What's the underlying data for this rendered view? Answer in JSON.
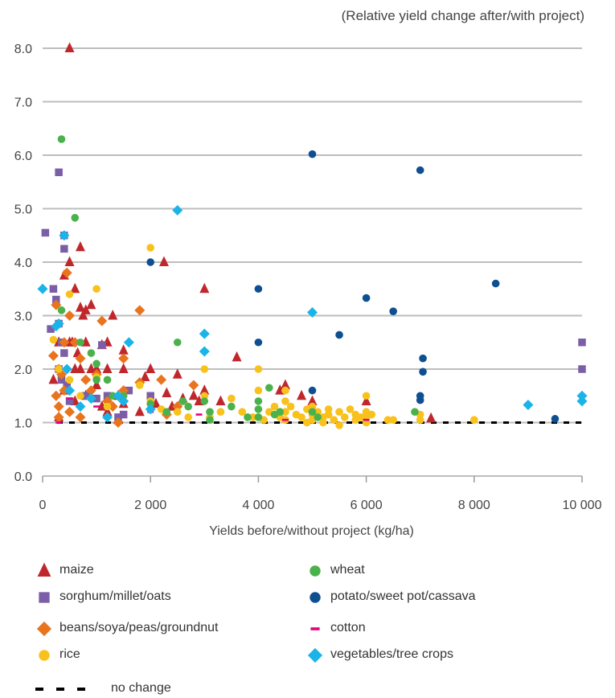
{
  "chart_data": {
    "type": "scatter",
    "title": "",
    "ylabel": "(Relative yield change after/with project)",
    "xlabel": "Yields before/without project (kg/ha)",
    "xlim": [
      0,
      10000
    ],
    "ylim": [
      0,
      8.5
    ],
    "x_ticks": [
      0,
      2000,
      4000,
      6000,
      8000,
      10000
    ],
    "x_tick_labels": [
      "0",
      "2 000",
      "4 000",
      "6 000",
      "8 000",
      "10 000"
    ],
    "y_ticks": [
      0,
      1,
      2,
      3,
      4,
      5,
      6,
      7,
      8
    ],
    "y_tick_labels": [
      "0.0",
      "1.0",
      "2.0",
      "3.0",
      "4.0",
      "5.0",
      "6.0",
      "7.0",
      "8.0"
    ],
    "grid": "horizontal",
    "reference_line": {
      "name": "no change",
      "y": 1.0,
      "style": "dashed",
      "color": "#000000"
    },
    "legend_position": "bottom",
    "series": [
      {
        "name": "maize",
        "marker": "triangle",
        "color": "#c0272d",
        "points": [
          [
            500,
            8.0
          ],
          [
            700,
            4.28
          ],
          [
            500,
            4.0
          ],
          [
            2250,
            4.0
          ],
          [
            3000,
            3.5
          ],
          [
            400,
            3.75
          ],
          [
            600,
            3.5
          ],
          [
            800,
            3.1
          ],
          [
            700,
            3.15
          ],
          [
            900,
            3.2
          ],
          [
            750,
            3.0
          ],
          [
            1300,
            3.0
          ],
          [
            1100,
            2.45
          ],
          [
            1200,
            2.5
          ],
          [
            1500,
            2.35
          ],
          [
            300,
            2.5
          ],
          [
            500,
            2.5
          ],
          [
            550,
            2.5
          ],
          [
            600,
            2.0
          ],
          [
            650,
            2.3
          ],
          [
            700,
            2.0
          ],
          [
            800,
            2.5
          ],
          [
            900,
            2.0
          ],
          [
            1000,
            2.0
          ],
          [
            1200,
            2.0
          ],
          [
            1500,
            2.0
          ],
          [
            2000,
            2.0
          ],
          [
            1900,
            1.85
          ],
          [
            2500,
            1.9
          ],
          [
            3600,
            2.22
          ],
          [
            200,
            1.8
          ],
          [
            400,
            1.6
          ],
          [
            600,
            1.4
          ],
          [
            800,
            1.5
          ],
          [
            1000,
            1.7
          ],
          [
            1100,
            1.3
          ],
          [
            1200,
            1.2
          ],
          [
            1400,
            1.5
          ],
          [
            1500,
            1.35
          ],
          [
            1800,
            1.2
          ],
          [
            2100,
            1.35
          ],
          [
            2300,
            1.55
          ],
          [
            2400,
            1.3
          ],
          [
            2600,
            1.45
          ],
          [
            2800,
            1.5
          ],
          [
            2900,
            1.4
          ],
          [
            3000,
            1.6
          ],
          [
            3300,
            1.4
          ],
          [
            4400,
            1.6
          ],
          [
            4500,
            1.7
          ],
          [
            4800,
            1.5
          ],
          [
            5000,
            1.4
          ],
          [
            6000,
            1.4
          ],
          [
            7200,
            1.08
          ],
          [
            300,
            1.1
          ],
          [
            1400,
            1.05
          ]
        ]
      },
      {
        "name": "sorghum/millet/oats",
        "marker": "square",
        "color": "#7b5ea7",
        "points": [
          [
            50,
            4.55
          ],
          [
            300,
            5.68
          ],
          [
            400,
            4.5
          ],
          [
            400,
            4.25
          ],
          [
            200,
            3.5
          ],
          [
            250,
            3.3
          ],
          [
            300,
            2.85
          ],
          [
            150,
            2.75
          ],
          [
            350,
            2.5
          ],
          [
            400,
            2.3
          ],
          [
            300,
            2.0
          ],
          [
            350,
            1.8
          ],
          [
            450,
            1.7
          ],
          [
            500,
            1.4
          ],
          [
            800,
            1.5
          ],
          [
            1000,
            1.45
          ],
          [
            1100,
            2.45
          ],
          [
            1200,
            1.5
          ],
          [
            1400,
            1.1
          ],
          [
            1500,
            1.15
          ],
          [
            1600,
            1.6
          ],
          [
            2000,
            1.5
          ],
          [
            10000,
            2.5
          ],
          [
            10000,
            2.0
          ]
        ]
      },
      {
        "name": "beans/soya/peas/groundnut",
        "marker": "diamond",
        "color": "#e8741e",
        "points": [
          [
            450,
            3.8
          ],
          [
            500,
            3.0
          ],
          [
            250,
            3.2
          ],
          [
            200,
            2.25
          ],
          [
            300,
            2.0
          ],
          [
            400,
            2.5
          ],
          [
            600,
            2.5
          ],
          [
            700,
            2.2
          ],
          [
            800,
            1.8
          ],
          [
            900,
            1.6
          ],
          [
            1100,
            2.9
          ],
          [
            1300,
            1.3
          ],
          [
            1500,
            2.2
          ],
          [
            1800,
            3.1
          ],
          [
            250,
            1.5
          ],
          [
            300,
            1.3
          ],
          [
            350,
            1.9
          ],
          [
            400,
            1.6
          ],
          [
            500,
            1.2
          ],
          [
            700,
            1.1
          ],
          [
            1000,
            1.9
          ],
          [
            1200,
            1.4
          ],
          [
            1400,
            1.0
          ],
          [
            1500,
            1.6
          ],
          [
            1800,
            1.75
          ],
          [
            2200,
            1.8
          ],
          [
            2300,
            1.15
          ],
          [
            2500,
            1.3
          ],
          [
            2800,
            1.7
          ],
          [
            300,
            1.1
          ]
        ]
      },
      {
        "name": "rice",
        "marker": "circle",
        "color": "#f9c11b",
        "points": [
          [
            2000,
            4.27
          ],
          [
            1000,
            3.5
          ],
          [
            500,
            3.4
          ],
          [
            200,
            2.55
          ],
          [
            300,
            2.0
          ],
          [
            500,
            1.8
          ],
          [
            700,
            1.5
          ],
          [
            1000,
            1.85
          ],
          [
            1200,
            1.3
          ],
          [
            1500,
            1.5
          ],
          [
            1800,
            1.7
          ],
          [
            2000,
            1.4
          ],
          [
            2200,
            1.25
          ],
          [
            2500,
            1.2
          ],
          [
            2700,
            1.1
          ],
          [
            3000,
            2.0
          ],
          [
            3000,
            1.5
          ],
          [
            3100,
            1.1
          ],
          [
            3300,
            1.2
          ],
          [
            3500,
            1.45
          ],
          [
            3700,
            1.2
          ],
          [
            3900,
            1.1
          ],
          [
            4000,
            2.0
          ],
          [
            4000,
            1.6
          ],
          [
            4000,
            1.1
          ],
          [
            4100,
            1.05
          ],
          [
            4200,
            1.2
          ],
          [
            4300,
            1.3
          ],
          [
            4400,
            1.1
          ],
          [
            4500,
            1.6
          ],
          [
            4500,
            1.4
          ],
          [
            4500,
            1.2
          ],
          [
            4500,
            1.05
          ],
          [
            4600,
            1.3
          ],
          [
            4700,
            1.15
          ],
          [
            4800,
            1.1
          ],
          [
            4900,
            1.25
          ],
          [
            4900,
            1.0
          ],
          [
            5000,
            1.3
          ],
          [
            5000,
            1.15
          ],
          [
            5000,
            1.05
          ],
          [
            5100,
            1.2
          ],
          [
            5200,
            1.1
          ],
          [
            5200,
            1.0
          ],
          [
            5300,
            1.25
          ],
          [
            5300,
            1.15
          ],
          [
            5400,
            1.05
          ],
          [
            5500,
            1.2
          ],
          [
            5500,
            0.95
          ],
          [
            5600,
            1.1
          ],
          [
            5700,
            1.25
          ],
          [
            5800,
            1.15
          ],
          [
            5800,
            1.05
          ],
          [
            5900,
            1.1
          ],
          [
            6000,
            1.5
          ],
          [
            6000,
            1.2
          ],
          [
            6000,
            1.1
          ],
          [
            6000,
            1.0
          ],
          [
            6100,
            1.15
          ],
          [
            6400,
            1.05
          ],
          [
            6500,
            1.05
          ],
          [
            7000,
            1.15
          ],
          [
            7000,
            1.05
          ],
          [
            8000,
            1.05
          ]
        ]
      },
      {
        "name": "wheat",
        "marker": "circle",
        "color": "#4bb24b",
        "points": [
          [
            350,
            6.3
          ],
          [
            600,
            4.83
          ],
          [
            350,
            3.1
          ],
          [
            700,
            2.5
          ],
          [
            900,
            2.3
          ],
          [
            1000,
            2.1
          ],
          [
            1000,
            1.8
          ],
          [
            1200,
            1.8
          ],
          [
            1300,
            1.5
          ],
          [
            1500,
            1.5
          ],
          [
            2000,
            1.35
          ],
          [
            2300,
            1.2
          ],
          [
            2500,
            2.5
          ],
          [
            2600,
            1.4
          ],
          [
            2700,
            1.3
          ],
          [
            3000,
            1.4
          ],
          [
            3100,
            1.2
          ],
          [
            3100,
            1.05
          ],
          [
            3500,
            1.3
          ],
          [
            3800,
            1.1
          ],
          [
            4000,
            1.4
          ],
          [
            4000,
            1.25
          ],
          [
            4000,
            1.1
          ],
          [
            4200,
            1.65
          ],
          [
            4300,
            1.15
          ],
          [
            4400,
            1.2
          ],
          [
            5000,
            1.2
          ],
          [
            5100,
            1.1
          ],
          [
            6900,
            1.2
          ]
        ]
      },
      {
        "name": "potato/sweet pot/cassava",
        "marker": "circle",
        "color": "#0e4f91",
        "points": [
          [
            5000,
            6.02
          ],
          [
            7000,
            5.72
          ],
          [
            2000,
            4.0
          ],
          [
            8400,
            3.6
          ],
          [
            4000,
            3.5
          ],
          [
            6000,
            3.33
          ],
          [
            6500,
            3.08
          ],
          [
            5500,
            2.64
          ],
          [
            4000,
            2.5
          ],
          [
            7050,
            2.2
          ],
          [
            7050,
            1.95
          ],
          [
            5000,
            1.6
          ],
          [
            7000,
            1.5
          ],
          [
            7000,
            1.42
          ],
          [
            9500,
            1.07
          ]
        ]
      },
      {
        "name": "cotton",
        "marker": "dash",
        "color": "#e6007e",
        "points": [
          [
            300,
            1.0
          ],
          [
            500,
            1.45
          ],
          [
            1000,
            1.3
          ],
          [
            2000,
            1.2
          ],
          [
            2900,
            1.15
          ],
          [
            4500,
            1.05
          ],
          [
            6000,
            1.05
          ]
        ]
      },
      {
        "name": "vegetables/tree crops",
        "marker": "diamond",
        "color": "#1ab4e8",
        "points": [
          [
            2500,
            4.97
          ],
          [
            400,
            4.5
          ],
          [
            0,
            3.5
          ],
          [
            5000,
            3.06
          ],
          [
            3000,
            2.66
          ],
          [
            3000,
            2.33
          ],
          [
            1600,
            2.5
          ],
          [
            250,
            2.8
          ],
          [
            300,
            2.85
          ],
          [
            450,
            2.0
          ],
          [
            500,
            1.6
          ],
          [
            700,
            1.3
          ],
          [
            900,
            1.45
          ],
          [
            1200,
            1.1
          ],
          [
            1400,
            1.5
          ],
          [
            1500,
            1.4
          ],
          [
            2000,
            1.25
          ],
          [
            9000,
            1.33
          ],
          [
            10000,
            1.5
          ],
          [
            10000,
            1.4
          ]
        ]
      }
    ]
  }
}
